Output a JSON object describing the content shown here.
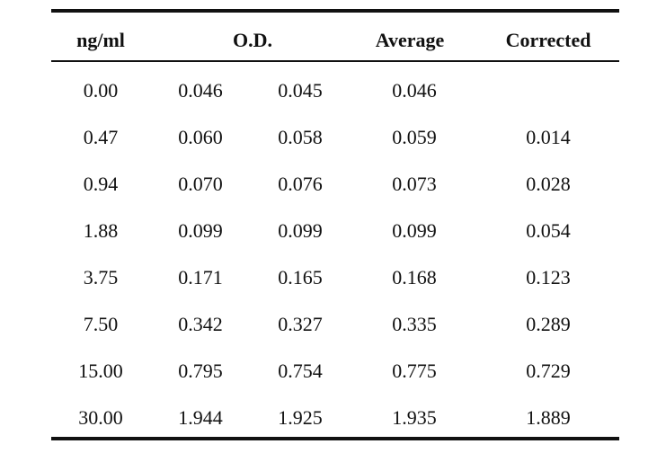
{
  "table": {
    "headers": {
      "conc": "ng/ml",
      "od": "O.D.",
      "average": "Average",
      "corrected": "Corrected"
    },
    "rows": [
      {
        "conc": "0.00",
        "od1": "0.046",
        "od2": "0.045",
        "average": "0.046",
        "corrected": ""
      },
      {
        "conc": "0.47",
        "od1": "0.060",
        "od2": "0.058",
        "average": "0.059",
        "corrected": "0.014"
      },
      {
        "conc": "0.94",
        "od1": "0.070",
        "od2": "0.076",
        "average": "0.073",
        "corrected": "0.028"
      },
      {
        "conc": "1.88",
        "od1": "0.099",
        "od2": "0.099",
        "average": "0.099",
        "corrected": "0.054"
      },
      {
        "conc": "3.75",
        "od1": "0.171",
        "od2": "0.165",
        "average": "0.168",
        "corrected": "0.123"
      },
      {
        "conc": "7.50",
        "od1": "0.342",
        "od2": "0.327",
        "average": "0.335",
        "corrected": "0.289"
      },
      {
        "conc": "15.00",
        "od1": "0.795",
        "od2": "0.754",
        "average": "0.775",
        "corrected": "0.729"
      },
      {
        "conc": "30.00",
        "od1": "1.944",
        "od2": "1.925",
        "average": "1.935",
        "corrected": "1.889"
      }
    ]
  }
}
